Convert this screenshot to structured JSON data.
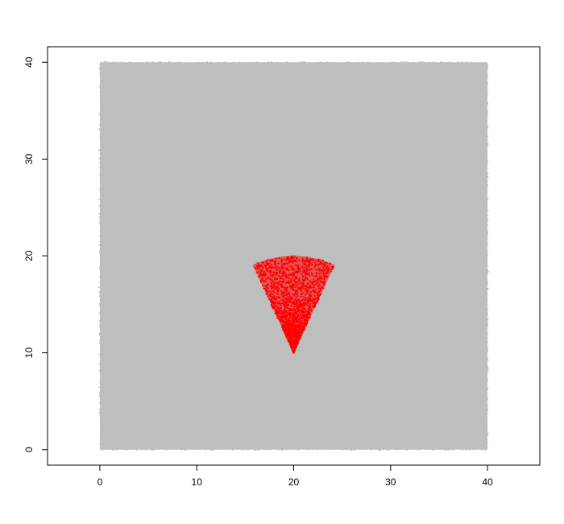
{
  "chart_data": {
    "type": "scatter",
    "title": "",
    "xlabel": "",
    "ylabel": "",
    "xlim": [
      -5.4,
      45.4
    ],
    "ylim": [
      -1.6,
      41.6
    ],
    "x_ticks": [
      0,
      10,
      20,
      30,
      40
    ],
    "x_tick_labels": [
      "0",
      "10",
      "20",
      "30",
      "40"
    ],
    "y_ticks": [
      0,
      10,
      20,
      30,
      40
    ],
    "y_tick_labels": [
      "0",
      "10",
      "20",
      "30",
      "40"
    ],
    "grid": false,
    "legend": "none",
    "series": [
      {
        "region": "square",
        "x_range": [
          0,
          40
        ],
        "y_range": [
          0,
          40
        ],
        "color": "#bebebe",
        "description_points": "dense uniform points covering the square [0,40] x [0,40]"
      },
      {
        "region": "sector",
        "apex": [
          20,
          10
        ],
        "radius": 10,
        "angle_range_deg": [
          65,
          115
        ],
        "approx_point_count": 1800,
        "color": "#ff0000"
      }
    ]
  }
}
